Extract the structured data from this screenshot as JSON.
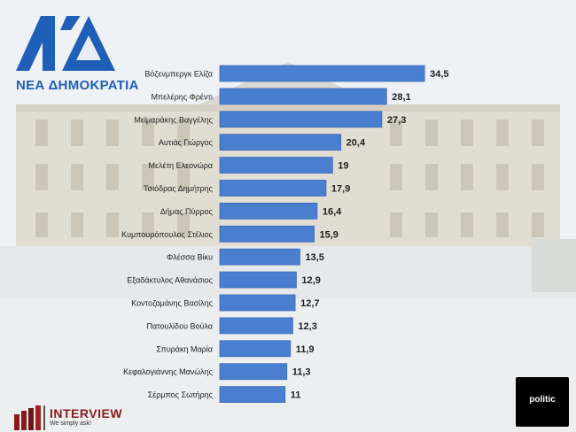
{
  "branding": {
    "party_logo_text": "ΝΔ",
    "party_name": "ΝΕΑ ΔΗΜΟΚΡΑΤΙΑ",
    "pollster_name": "INTERVIEW",
    "pollster_tagline": "We simply ask!",
    "media_name": "politic"
  },
  "colors": {
    "bar": "#4a7fd0",
    "bar_edge": "#3a6bb8",
    "label_text": "#222222",
    "party_blue": "#1f5fb8"
  },
  "chart_data": {
    "type": "bar",
    "orientation": "horizontal",
    "categories": [
      "Βόζενμπεργκ Ελίζα",
      "Μπελέρης Φρέντι",
      "Μεϊμαράκης Βαγγέλης",
      "Αυτιάς Γιώργος",
      "Μελέτη Ελεονώρα",
      "Τσιόδρας Δημήτρης",
      "Δήμας Πύρρος",
      "Κυμπουρόπουλος Στέλιος",
      "Φλέσσα Βίκυ",
      "Εξαδάκτυλος Αθανάσιος",
      "Κοντοζαμάνης Βασίλης",
      "Πατουλίδου Βούλα",
      "Σπυράκη Μαρία",
      "Κεφαλογιάννης Μανώλης",
      "Σέρμπος Σωτήρης"
    ],
    "values": [
      34.5,
      28.1,
      27.3,
      20.4,
      19,
      17.9,
      16.4,
      15.9,
      13.5,
      12.9,
      12.7,
      12.3,
      11.9,
      11.3,
      11
    ],
    "value_labels": [
      "34,5",
      "28,1",
      "27,3",
      "20,4",
      "19",
      "17,9",
      "16,4",
      "15,9",
      "13,5",
      "12,9",
      "12,7",
      "12,3",
      "11,9",
      "11,3",
      "11"
    ],
    "xlim": [
      0,
      40
    ],
    "grid": false,
    "legend": "none"
  }
}
